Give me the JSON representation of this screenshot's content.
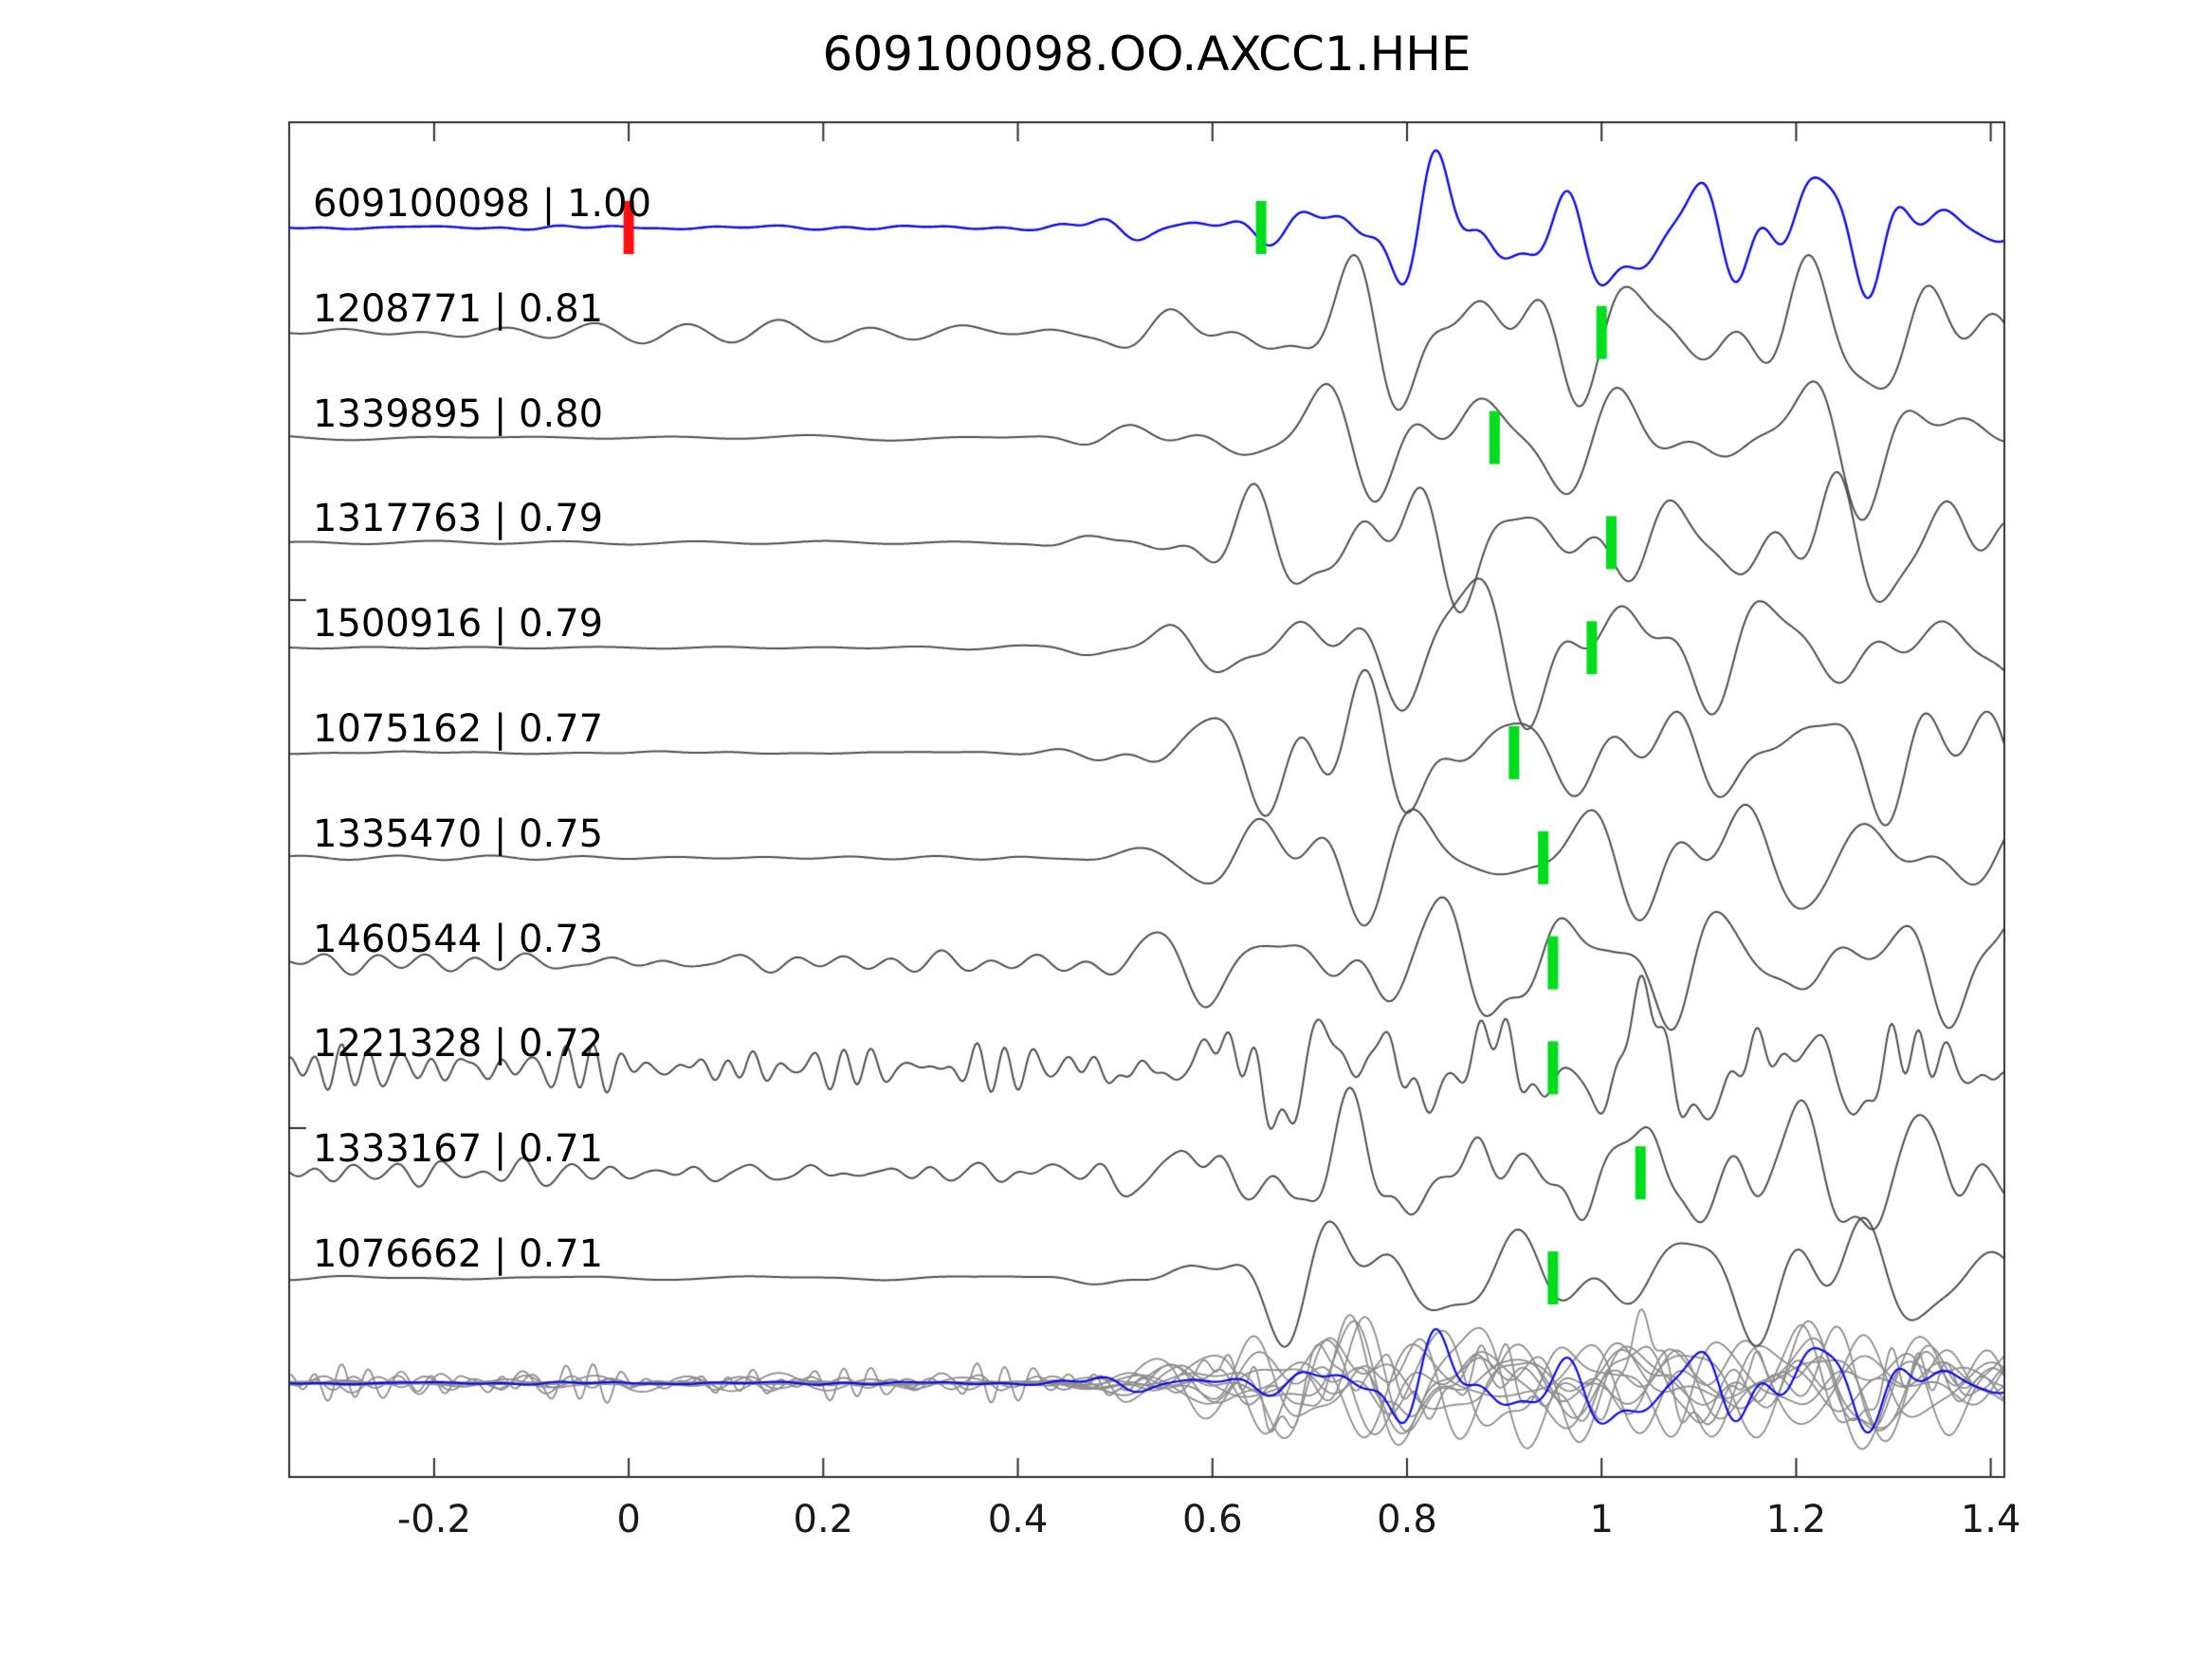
{
  "title": "609100098.OO.AXCC1.HHE",
  "chart_data": {
    "type": "line",
    "title": "609100098.OO.AXCC1.HHE",
    "description": "Stacked seismic waveform traces: template event on top (blue) with red template time marker at 0 and green pick marker; below are detected events (dark gray) each labeled 'id | correlation' with a green pick marker; bottom row overlays all traces in light gray with the template in blue.",
    "x_axis": {
      "range": [
        -0.349,
        1.414
      ],
      "ticks": [
        -0.2,
        0,
        0.2,
        0.4,
        0.6,
        0.8,
        1,
        1.2,
        1.4
      ],
      "tick_labels": [
        "-0.2",
        "0",
        "0.2",
        "0.4",
        "0.6",
        "0.8",
        "1",
        "1.2",
        "1.4"
      ],
      "grid": false
    },
    "legend": "none",
    "colors": {
      "template_trace": "#0b0bee",
      "detection_trace": "#4f4f4f",
      "overlay_trace": "#8f8f8f",
      "pick_marker": "#00dd1d",
      "template_pick_marker": "#ff0f0f",
      "spine": "#2e2e2e",
      "text": "#000000"
    },
    "traces": [
      {
        "label": "609100098 | 1.00",
        "id": "609100098",
        "correlation": 1.0,
        "role": "template",
        "color": "blue",
        "pick_time": 0.65,
        "template_time_marker": 0.0,
        "noise_level": "very-low",
        "signal_onset": 0.63
      },
      {
        "label": "1208771 | 0.81",
        "id": "1208771",
        "correlation": 0.81,
        "role": "detection",
        "color": "dark-gray",
        "pick_time": 1.0,
        "noise_level": "medium",
        "signal_onset": 0.5
      },
      {
        "label": "1339895 | 0.80",
        "id": "1339895",
        "correlation": 0.8,
        "role": "detection",
        "color": "dark-gray",
        "pick_time": 0.89,
        "noise_level": "low",
        "signal_onset": 0.5
      },
      {
        "label": "1317763 | 0.79",
        "id": "1317763",
        "correlation": 0.79,
        "role": "detection",
        "color": "dark-gray",
        "pick_time": 1.01,
        "noise_level": "very-low",
        "signal_onset": 0.52
      },
      {
        "label": "1500916 | 0.79",
        "id": "1500916",
        "correlation": 0.79,
        "role": "detection",
        "color": "dark-gray",
        "pick_time": 0.99,
        "noise_level": "low",
        "signal_onset": 0.48
      },
      {
        "label": "1075162 | 0.77",
        "id": "1075162",
        "correlation": 0.77,
        "role": "detection",
        "color": "dark-gray",
        "pick_time": 0.91,
        "noise_level": "low",
        "signal_onset": 0.45
      },
      {
        "label": "1335470 | 0.75",
        "id": "1335470",
        "correlation": 0.75,
        "role": "detection",
        "color": "dark-gray",
        "pick_time": 0.94,
        "noise_level": "low",
        "signal_onset": 0.5
      },
      {
        "label": "1460544 | 0.73",
        "id": "1460544",
        "correlation": 0.73,
        "role": "detection",
        "color": "dark-gray",
        "pick_time": 0.95,
        "noise_level": "medium",
        "signal_onset": 0.5
      },
      {
        "label": "1221328 | 0.72",
        "id": "1221328",
        "correlation": 0.72,
        "role": "detection",
        "color": "dark-gray",
        "pick_time": 0.95,
        "noise_level": "high",
        "signal_onset": 0.52
      },
      {
        "label": "1333167 | 0.71",
        "id": "1333167",
        "correlation": 0.71,
        "role": "detection",
        "color": "dark-gray",
        "pick_time": 1.04,
        "noise_level": "medium-high",
        "signal_onset": 0.52
      },
      {
        "label": "1076662 | 0.71",
        "id": "1076662",
        "correlation": 0.71,
        "role": "detection",
        "color": "dark-gray",
        "pick_time": 0.95,
        "noise_level": "very-low",
        "signal_onset": 0.52
      }
    ],
    "overlay_row": {
      "description": "all detection traces overlaid in light gray with the blue template on top",
      "has_pick_markers": false
    }
  }
}
